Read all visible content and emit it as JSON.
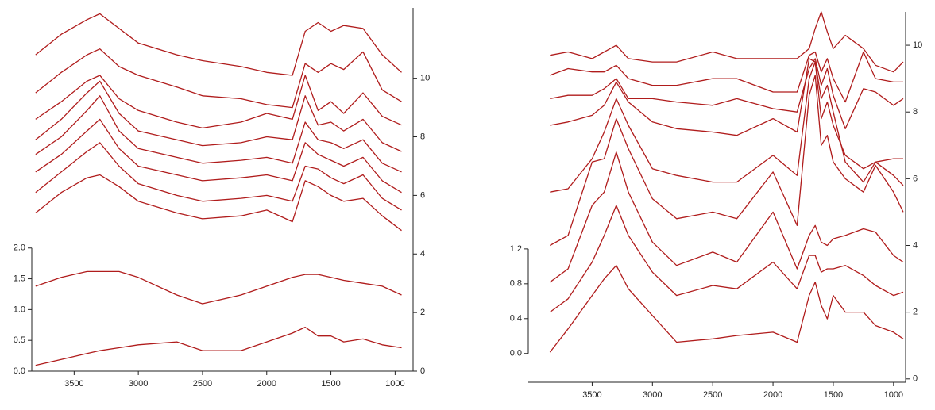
{
  "chart_data": [
    {
      "type": "line",
      "x": [
        3800,
        3600,
        3400,
        3300,
        3150,
        3000,
        2700,
        2500,
        2200,
        2000,
        1800,
        1700,
        1600,
        1500,
        1400,
        1250,
        1100,
        950
      ],
      "xlim": [
        3830,
        860
      ],
      "xticks": [
        3500,
        3000,
        2500,
        2000,
        1500,
        1000
      ],
      "ylim": [
        0,
        5.9
      ],
      "yticks": [
        {
          "value": 0,
          "label": "0.0"
        },
        0.5,
        {
          "value": 1,
          "label": "1.0"
        },
        1.5,
        {
          "value": 2,
          "label": "2.0"
        }
      ],
      "y2lim": [
        0,
        12.4
      ],
      "y2ticks": [
        0,
        2,
        4,
        6,
        8,
        10
      ],
      "series": [
        {
          "color": "#b01c1c",
          "axis": "y2",
          "values": [
            10.8,
            11.5,
            12.0,
            12.2,
            11.7,
            11.2,
            10.8,
            10.6,
            10.4,
            10.2,
            10.1,
            11.6,
            11.9,
            11.6,
            11.8,
            11.7,
            10.8,
            10.2
          ]
        },
        {
          "color": "#b01c1c",
          "axis": "y2",
          "values": [
            9.5,
            10.2,
            10.8,
            11.0,
            10.4,
            10.1,
            9.7,
            9.4,
            9.3,
            9.1,
            9.0,
            10.5,
            10.2,
            10.5,
            10.3,
            10.9,
            9.6,
            9.2
          ]
        },
        {
          "color": "#b01c1c",
          "axis": "y2",
          "values": [
            8.6,
            9.2,
            9.9,
            10.1,
            9.3,
            8.9,
            8.5,
            8.3,
            8.5,
            8.8,
            8.6,
            10.1,
            8.9,
            9.2,
            8.8,
            9.5,
            8.7,
            8.4
          ]
        },
        {
          "color": "#b01c1c",
          "axis": "y2",
          "values": [
            7.9,
            8.6,
            9.5,
            9.9,
            8.8,
            8.2,
            7.9,
            7.7,
            7.8,
            8.0,
            7.9,
            9.4,
            8.4,
            8.5,
            8.2,
            8.6,
            7.8,
            7.5
          ]
        },
        {
          "color": "#b01c1c",
          "axis": "y2",
          "values": [
            7.4,
            8.0,
            8.9,
            9.4,
            8.2,
            7.6,
            7.3,
            7.1,
            7.2,
            7.3,
            7.1,
            8.5,
            7.9,
            7.8,
            7.6,
            7.9,
            7.1,
            6.8
          ]
        },
        {
          "color": "#b01c1c",
          "axis": "y2",
          "values": [
            6.8,
            7.4,
            8.2,
            8.6,
            7.6,
            7.0,
            6.7,
            6.5,
            6.6,
            6.7,
            6.5,
            7.8,
            7.4,
            7.2,
            7.0,
            7.3,
            6.5,
            6.1
          ]
        },
        {
          "color": "#b01c1c",
          "axis": "y2",
          "values": [
            6.1,
            6.8,
            7.5,
            7.8,
            7.0,
            6.4,
            6.0,
            5.8,
            5.9,
            6.0,
            5.8,
            7.0,
            6.9,
            6.6,
            6.4,
            6.7,
            5.9,
            5.5
          ]
        },
        {
          "color": "#b01c1c",
          "axis": "y2",
          "values": [
            5.4,
            6.1,
            6.6,
            6.7,
            6.3,
            5.8,
            5.4,
            5.2,
            5.3,
            5.5,
            5.1,
            6.5,
            6.3,
            6.0,
            5.8,
            5.9,
            5.3,
            4.8
          ]
        },
        {
          "color": "#b01c1c",
          "axis": "y2",
          "values": [
            2.9,
            3.2,
            3.4,
            3.4,
            3.4,
            3.2,
            2.6,
            2.3,
            2.6,
            2.9,
            3.2,
            3.3,
            3.3,
            3.2,
            3.1,
            3.0,
            2.9,
            2.6
          ]
        },
        {
          "color": "#b01c1c",
          "axis": "y2",
          "values": [
            0.2,
            0.4,
            0.6,
            0.7,
            0.8,
            0.9,
            1.0,
            0.7,
            0.7,
            1.0,
            1.3,
            1.5,
            1.2,
            1.2,
            1.0,
            1.1,
            0.9,
            0.8
          ]
        }
      ]
    },
    {
      "type": "line",
      "x": [
        3850,
        3700,
        3500,
        3400,
        3300,
        3200,
        3000,
        2800,
        2500,
        2300,
        2000,
        1800,
        1700,
        1650,
        1600,
        1550,
        1500,
        1400,
        1250,
        1150,
        1000,
        920
      ],
      "xlim": [
        4030,
        900
      ],
      "xticks": [
        3500,
        3000,
        2500,
        2000,
        1500,
        1000
      ],
      "ylim": [
        -0.33,
        3.92
      ],
      "yticks": [
        {
          "value": 0,
          "label": "0.0"
        },
        0.4,
        0.8,
        1.2
      ],
      "y2lim": [
        -0.1,
        11
      ],
      "y2ticks": [
        0,
        2,
        4,
        6,
        8,
        10
      ],
      "series": [
        {
          "color": "#b01c1c",
          "axis": "y2",
          "values": [
            9.7,
            9.8,
            9.6,
            9.8,
            10.0,
            9.6,
            9.5,
            9.5,
            9.8,
            9.6,
            9.6,
            9.6,
            9.9,
            10.5,
            11.0,
            10.4,
            9.9,
            10.3,
            9.9,
            9.4,
            9.2,
            9.5
          ]
        },
        {
          "color": "#b01c1c",
          "axis": "y2",
          "values": [
            9.1,
            9.3,
            9.2,
            9.2,
            9.4,
            9.0,
            8.8,
            8.8,
            9.0,
            9.0,
            8.6,
            8.6,
            9.7,
            9.8,
            9.2,
            9.6,
            9.0,
            8.3,
            9.8,
            9.0,
            8.9,
            8.9
          ]
        },
        {
          "color": "#b01c1c",
          "axis": "y2",
          "values": [
            8.4,
            8.5,
            8.5,
            8.7,
            9.0,
            8.4,
            8.4,
            8.3,
            8.2,
            8.4,
            8.1,
            8.0,
            9.3,
            9.6,
            8.8,
            9.3,
            8.5,
            7.5,
            8.7,
            8.6,
            8.2,
            8.4
          ]
        },
        {
          "color": "#b01c1c",
          "axis": "y2",
          "values": [
            7.6,
            7.7,
            7.9,
            8.2,
            8.9,
            8.3,
            7.7,
            7.5,
            7.4,
            7.3,
            7.8,
            7.4,
            9.6,
            9.5,
            8.4,
            8.8,
            8.0,
            6.5,
            5.9,
            6.5,
            6.6,
            6.6
          ]
        },
        {
          "color": "#b01c1c",
          "axis": "y2",
          "values": [
            5.6,
            5.7,
            6.6,
            7.4,
            8.4,
            7.6,
            6.3,
            6.1,
            5.9,
            5.9,
            6.7,
            6.1,
            9.0,
            9.5,
            7.8,
            8.3,
            7.6,
            6.7,
            6.3,
            6.5,
            6.1,
            5.8
          ]
        },
        {
          "color": "#b01c1c",
          "axis": "y2",
          "values": [
            4.0,
            4.3,
            6.5,
            6.6,
            7.8,
            6.9,
            5.4,
            4.8,
            5.0,
            4.8,
            6.2,
            4.6,
            8.5,
            9.1,
            7.0,
            7.3,
            6.5,
            6.0,
            5.6,
            6.4,
            5.6,
            5.0
          ]
        },
        {
          "color": "#b01c1c",
          "axis": "y2",
          "values": [
            2.9,
            3.3,
            5.2,
            5.6,
            6.8,
            5.6,
            4.1,
            3.4,
            3.8,
            3.5,
            5.0,
            3.3,
            4.3,
            4.6,
            4.1,
            4.0,
            4.2,
            4.3,
            4.5,
            4.4,
            3.7,
            3.5
          ]
        },
        {
          "color": "#b01c1c",
          "axis": "y2",
          "values": [
            2.0,
            2.4,
            3.5,
            4.3,
            5.2,
            4.3,
            3.2,
            2.5,
            2.8,
            2.7,
            3.5,
            2.7,
            3.7,
            3.7,
            3.2,
            3.3,
            3.3,
            3.4,
            3.1,
            2.8,
            2.5,
            2.6
          ]
        },
        {
          "color": "#b01c1c",
          "axis": "y2",
          "values": [
            0.8,
            1.5,
            2.5,
            3.0,
            3.4,
            2.7,
            1.9,
            1.1,
            1.2,
            1.3,
            1.4,
            1.1,
            2.5,
            2.9,
            2.2,
            1.8,
            2.5,
            2.0,
            2.0,
            1.6,
            1.4,
            1.2
          ]
        }
      ]
    }
  ]
}
